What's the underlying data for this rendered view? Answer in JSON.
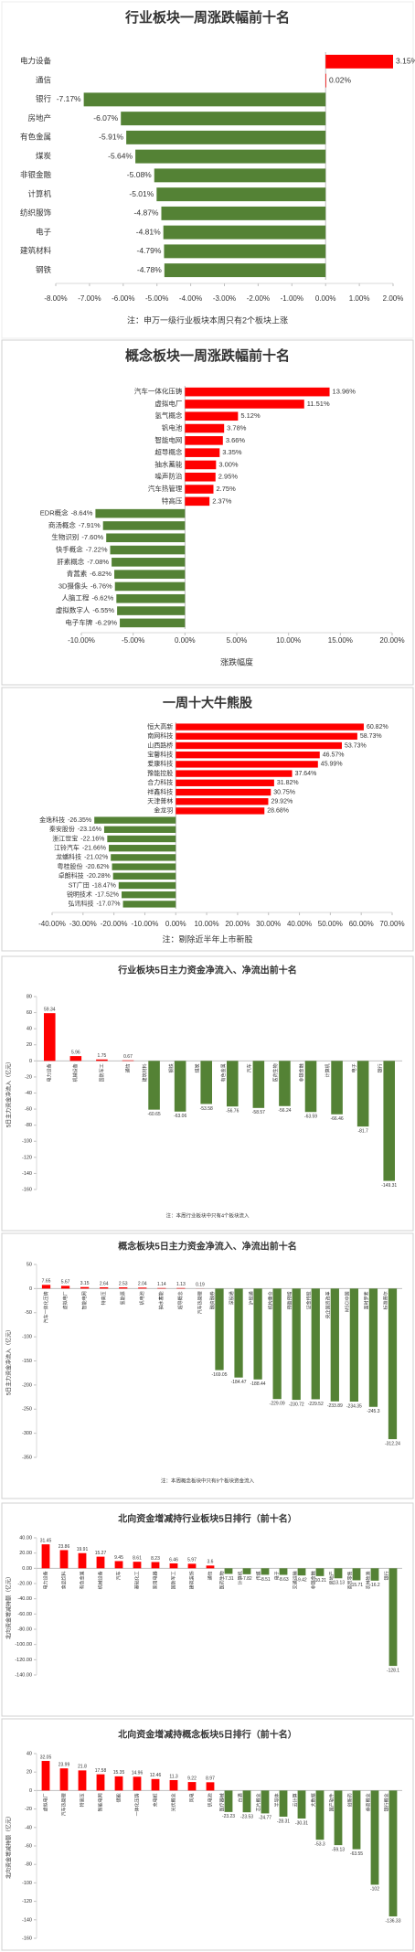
{
  "chart_data": [
    {
      "type": "bar",
      "orientation": "horizontal",
      "title": "行业板块一周涨跌幅前十名",
      "categories": [
        "电力设备",
        "通信",
        "银行",
        "房地产",
        "有色金属",
        "煤炭",
        "非银金融",
        "计算机",
        "纺织服饰",
        "电子",
        "建筑材料",
        "钢铁"
      ],
      "values": [
        3.15,
        0.02,
        -7.17,
        -6.07,
        -5.91,
        -5.64,
        -5.08,
        -5.01,
        -4.87,
        -4.81,
        -4.79,
        -4.78
      ],
      "value_labels": [
        "3.15%",
        "0.02%",
        "-7.17%",
        "-6.07%",
        "-5.91%",
        "-5.64%",
        "-5.08%",
        "-5.01%",
        "-4.87%",
        "-4.81%",
        "-4.79%",
        "-4.78%"
      ],
      "up_color": "#ff0000",
      "down_color": "#548235",
      "xlim": [
        -8,
        2
      ],
      "xticks": [
        {
          "value": -8,
          "label": "-8.00%"
        },
        {
          "value": -7,
          "label": "-7.00%"
        },
        {
          "value": -6,
          "label": "-6.00%"
        },
        {
          "value": -5,
          "label": "-5.00%"
        },
        {
          "value": -4,
          "label": "-4.00%"
        },
        {
          "value": -3,
          "label": "-3.00%"
        },
        {
          "value": -2,
          "label": "-2.00%"
        },
        {
          "value": -1,
          "label": "-1.00%"
        },
        {
          "value": 0,
          "label": "0.00%"
        },
        {
          "value": 1,
          "label": "1.00%"
        },
        {
          "value": 2,
          "label": "2.00%"
        }
      ],
      "note": "注：申万一级行业板块本周只有2个板块上涨"
    },
    {
      "type": "bar",
      "orientation": "horizontal",
      "title": "概念板块一周涨跌幅前十名",
      "categories": [
        "汽车一体化压铸",
        "虚拟电厂",
        "氢气概念",
        "钒电池",
        "智能电网",
        "超导概念",
        "抽水蓄能",
        "噪声防治",
        "汽车热管理",
        "特高压",
        "EDR概念",
        "商汤概念",
        "生物识别",
        "快手概念",
        "肝素概念",
        "青蒿素",
        "3D摄像头",
        "人脑工程",
        "虚拟数字人",
        "电子车牌"
      ],
      "values": [
        13.96,
        11.51,
        5.12,
        3.78,
        3.66,
        3.35,
        3.0,
        2.95,
        2.75,
        2.37,
        -8.64,
        -7.91,
        -7.6,
        -7.22,
        -7.08,
        -6.82,
        -6.76,
        -6.62,
        -6.55,
        -6.29
      ],
      "value_labels": [
        "13.96%",
        "11.51%",
        "5.12%",
        "3.78%",
        "3.66%",
        "3.35%",
        "3.00%",
        "2.95%",
        "2.75%",
        "2.37%",
        "-8.64%",
        "-7.91%",
        "-7.60%",
        "-7.22%",
        "-7.08%",
        "-6.82%",
        "-6.76%",
        "-6.62%",
        "-6.55%",
        "-6.29%"
      ],
      "up_color": "#ff0000",
      "down_color": "#548235",
      "xlim": [
        -10,
        20
      ],
      "xticks": [
        {
          "value": -10,
          "label": "-10.00%"
        },
        {
          "value": -5,
          "label": "-5.00%"
        },
        {
          "value": 0,
          "label": "0.00%"
        },
        {
          "value": 5,
          "label": "5.00%"
        },
        {
          "value": 10,
          "label": "10.00%"
        },
        {
          "value": 15,
          "label": "15.00%"
        },
        {
          "value": 20,
          "label": "20.00%"
        }
      ],
      "x_label": "涨跌幅度"
    },
    {
      "type": "bar",
      "orientation": "horizontal",
      "title": "一周十大牛熊股",
      "categories": [
        "恒大高新",
        "南网科技",
        "山西路桥",
        "宝馨科技",
        "爱康科技",
        "豫能控股",
        "合力科技",
        "祥鑫科技",
        "天津普林",
        "金龙羽",
        "金逸科技",
        "秦安股份",
        "浙江世宝",
        "江铃汽车",
        "龙蟠科技",
        "粤桂股份",
        "卓朗科技",
        "ST广田",
        "锐明技术",
        "弘讯科技"
      ],
      "values": [
        60.82,
        58.73,
        53.73,
        46.57,
        45.99,
        37.64,
        31.82,
        30.75,
        29.92,
        28.68,
        -26.35,
        -23.16,
        -22.16,
        -21.66,
        -21.02,
        -20.62,
        -20.28,
        -18.47,
        -17.52,
        -17.07
      ],
      "value_labels": [
        "60.82%",
        "58.73%",
        "53.73%",
        "46.57%",
        "45.99%",
        "37.64%",
        "31.82%",
        "30.75%",
        "29.92%",
        "28.68%",
        "-26.35%",
        "-23.16%",
        "-22.16%",
        "-21.66%",
        "-21.02%",
        "-20.62%",
        "-20.28%",
        "-18.47%",
        "-17.52%",
        "-17.07%"
      ],
      "up_color": "#ff0000",
      "down_color": "#548235",
      "xlim": [
        -40,
        70
      ],
      "xticks": [
        {
          "value": -40,
          "label": "-40.00%"
        },
        {
          "value": -30,
          "label": "-30.00%"
        },
        {
          "value": -20,
          "label": "-20.00%"
        },
        {
          "value": -10,
          "label": "-10.00%"
        },
        {
          "value": 0,
          "label": "0.00%"
        },
        {
          "value": 10,
          "label": "10.00%"
        },
        {
          "value": 20,
          "label": "20.00%"
        },
        {
          "value": 30,
          "label": "30.00%"
        },
        {
          "value": 40,
          "label": "40.00%"
        },
        {
          "value": 50,
          "label": "50.00%"
        },
        {
          "value": 60,
          "label": "60.00%"
        },
        {
          "value": 70,
          "label": "70.00%"
        }
      ],
      "note": "注：剔除近半年上市新股"
    },
    {
      "type": "bar",
      "orientation": "vertical",
      "title": "行业板块5日主力资金净流入、净流出前十名",
      "categories": [
        "电力设备",
        "机械设备",
        "国防军工",
        "通信",
        "建筑材料",
        "钢铁",
        "煤炭",
        "有色金属",
        "汽车",
        "医药生物",
        "非银金融",
        "计算机",
        "电子",
        "银行"
      ],
      "values": [
        59.34,
        5.96,
        1.75,
        0.67,
        -60.65,
        -63.06,
        -53.58,
        -56.76,
        -58.57,
        -56.24,
        -63.59,
        -66.46,
        -81.7,
        -149.31
      ],
      "up_color": "#ff0000",
      "down_color": "#548235",
      "ylim": [
        -160,
        80
      ],
      "yticks": [
        -160,
        -140,
        -120,
        -100,
        -80,
        -60,
        -40,
        -20,
        0,
        20,
        40,
        60,
        80
      ],
      "y_label": "5日主力资金净流入（亿元）",
      "note": "注：本周行业板块中只有4个板块流入"
    },
    {
      "type": "bar",
      "orientation": "vertical",
      "title": "概念板块5日主力资金净流入、净流出前十名",
      "categories": [
        "汽车一体化压铸",
        "虚拟电厂",
        "智能电网",
        "特高压",
        "氢能源",
        "钒电池",
        "抽水蓄能",
        "超导概念",
        "汽车热管理",
        "融资融券",
        "深股通",
        "沪股通",
        "机构重仓",
        "预盈预增",
        "证金持股",
        "央企国资改革",
        "MSCI中国",
        "富时罗素",
        "标准普尔"
      ],
      "values": [
        7.65,
        5.67,
        3.15,
        2.64,
        2.53,
        2.04,
        1.14,
        1.13,
        0.19,
        -169.05,
        -184.47,
        -188.44,
        -229.09,
        -230.72,
        -229.52,
        -233.89,
        -234.35,
        -245.3,
        -312.24
      ],
      "up_color": "#ff0000",
      "down_color": "#548235",
      "ylim": [
        -350,
        50
      ],
      "yticks": [
        -350,
        -300,
        -250,
        -200,
        -150,
        -100,
        -50,
        0,
        50
      ],
      "y_label": "5日主力资金净流入（亿元）",
      "note": "注：本周概念板块中只有9个板块资金流入"
    },
    {
      "type": "bar",
      "orientation": "vertical",
      "title": "北向资金增减持行业板块5日排行（前十名）",
      "categories": [
        "电力设备",
        "食品饮料",
        "有色金属",
        "机械设备",
        "汽车",
        "基础化工",
        "家用电器",
        "国防军工",
        "建筑装饰",
        "通信",
        "医药生物",
        "计算机",
        "传媒",
        "电子",
        "交通运输",
        "非银金融",
        "房地产",
        "商贸零售",
        "农林牧渔",
        "银行"
      ],
      "values": [
        31.45,
        23.86,
        19.91,
        15.27,
        9.45,
        8.61,
        8.23,
        6.46,
        5.97,
        3.6,
        -7.31,
        -7.82,
        -8.51,
        -8.63,
        -9.42,
        -10.21,
        -13.13,
        -15.71,
        -16.2,
        -128.1
      ],
      "up_color": "#ff0000",
      "down_color": "#548235",
      "ylim": [
        -140,
        40
      ],
      "yticks": [
        {
          "value": -140,
          "label": "-140.00"
        },
        {
          "value": -120,
          "label": "-120.00"
        },
        {
          "value": -100,
          "label": "-100.00"
        },
        {
          "value": -80,
          "label": "-80.00"
        },
        {
          "value": -60,
          "label": "-60.00"
        },
        {
          "value": -40,
          "label": "-40.00"
        },
        {
          "value": -20,
          "label": "-20.00"
        },
        {
          "value": 0,
          "label": "0.00"
        },
        {
          "value": 20,
          "label": "20.00"
        },
        {
          "value": 40,
          "label": "40.00"
        }
      ],
      "y_label": "北向资金增减持额（亿元）"
    },
    {
      "type": "bar",
      "orientation": "vertical",
      "title": "北向资金增减持概念板块5日排行（前十名）",
      "categories": [
        "虚拟电厂",
        "汽车热管理",
        "特高压",
        "智能电网",
        "储能",
        "一体化压铸",
        "充电桩",
        "光伏概念",
        "风电",
        "钒电池",
        "医疗器械",
        "白酒",
        "芯片概念",
        "半导体",
        "云计算",
        "大数据",
        "国产软件",
        "创新药",
        "券商概念",
        "银行概念"
      ],
      "values": [
        32.05,
        23.99,
        21.8,
        17.58,
        15.35,
        14.96,
        12.46,
        11.3,
        9.22,
        8.97,
        -23.23,
        -23.53,
        -24.77,
        -28.31,
        -30.31,
        -53.3,
        -59.13,
        -63.55,
        -102,
        -136.33
      ],
      "up_color": "#ff0000",
      "down_color": "#548235",
      "ylim": [
        -160,
        40
      ],
      "yticks": [
        -160,
        -140,
        -120,
        -100,
        -80,
        -60,
        -40,
        -20,
        0,
        20,
        40
      ],
      "y_label": "北向资金增减持额（亿元）"
    }
  ]
}
